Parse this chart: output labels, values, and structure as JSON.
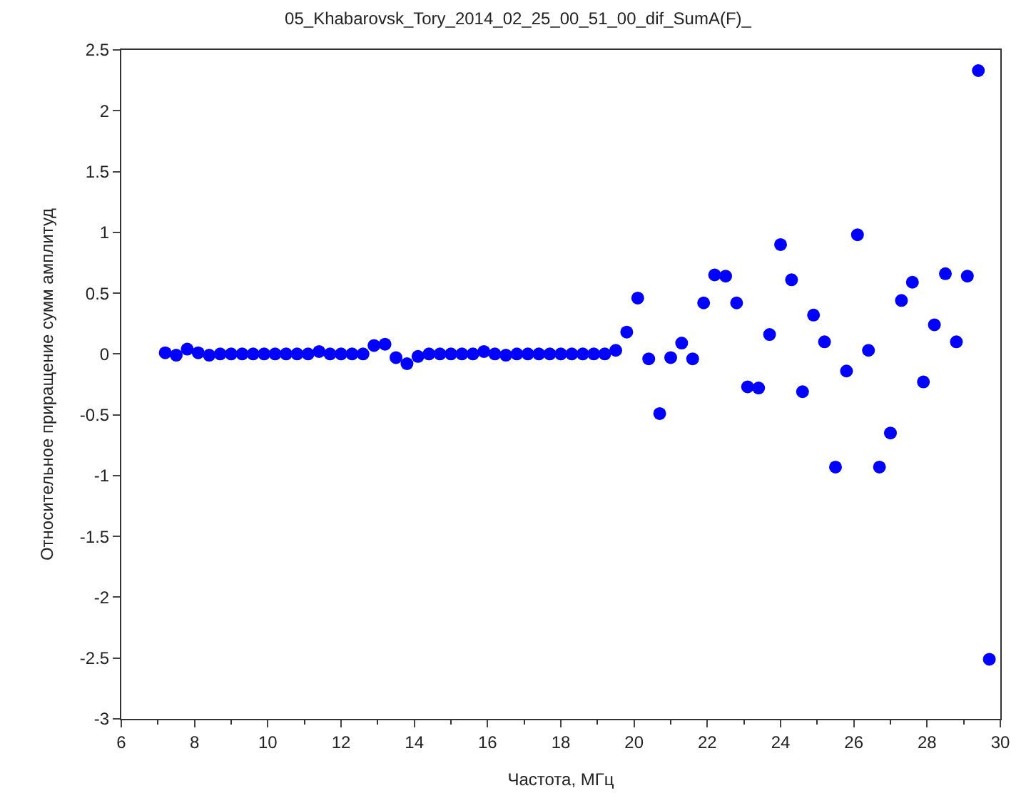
{
  "chart_data": {
    "type": "scatter",
    "title": "05_Khabarovsk_Tory_2014_02_25_00_51_00_dif_SumA(F)_",
    "xlabel": "Частота, МГц",
    "ylabel": "Относительное приращение сумм амплитуд",
    "x": [
      7.2,
      7.5,
      7.8,
      8.1,
      8.4,
      8.7,
      9.0,
      9.3,
      9.6,
      9.9,
      10.2,
      10.5,
      10.8,
      11.1,
      11.4,
      11.7,
      12.0,
      12.3,
      12.6,
      12.9,
      13.2,
      13.5,
      13.8,
      14.1,
      14.4,
      14.7,
      15.0,
      15.3,
      15.6,
      15.9,
      16.2,
      16.5,
      16.8,
      17.1,
      17.4,
      17.7,
      18.0,
      18.3,
      18.6,
      18.9,
      19.2,
      19.5,
      19.8,
      20.1,
      20.4,
      20.7,
      21.0,
      21.3,
      21.6,
      21.9,
      22.2,
      22.5,
      22.8,
      23.1,
      23.4,
      23.7,
      24.0,
      24.3,
      24.6,
      24.9,
      25.2,
      25.5,
      25.8,
      26.1,
      26.4,
      26.7,
      27.0,
      27.3,
      27.6,
      27.9,
      28.2,
      28.5,
      28.8,
      29.1,
      29.4,
      29.7
    ],
    "series": [
      {
        "color": "#0000ff",
        "values": [
          0.01,
          -0.01,
          0.04,
          0.01,
          -0.01,
          0,
          0,
          0,
          0,
          0,
          0,
          0,
          0,
          0,
          0.02,
          0,
          0,
          0,
          0,
          0.07,
          0.08,
          -0.03,
          -0.08,
          -0.02,
          0,
          0,
          0,
          0,
          0,
          0.02,
          0,
          -0.01,
          0,
          0,
          0,
          0,
          0,
          0,
          0,
          0,
          0,
          0.03,
          0.18,
          0.46,
          -0.04,
          -0.49,
          -0.03,
          0.09,
          -0.04,
          0.42,
          0.65,
          0.64,
          0.42,
          -0.27,
          -0.28,
          0.16,
          0.9,
          0.61,
          -0.31,
          0.32,
          0.1,
          -0.93,
          -0.14,
          0.98,
          0.03,
          -0.93,
          -0.65,
          0.44,
          0.59,
          -0.23,
          0.24,
          0.66,
          0.1,
          0.64,
          2.33,
          -2.51
        ]
      }
    ],
    "xlim": [
      6,
      30
    ],
    "xticks": [
      6,
      8,
      10,
      12,
      14,
      16,
      18,
      20,
      22,
      24,
      26,
      28,
      30
    ],
    "ylim": [
      -3,
      2.5
    ],
    "yticks": [
      -3,
      -2.5,
      -2,
      -1.5,
      -1,
      -0.5,
      0,
      0.5,
      1,
      1.5,
      2,
      2.5
    ],
    "marker": "circle"
  }
}
